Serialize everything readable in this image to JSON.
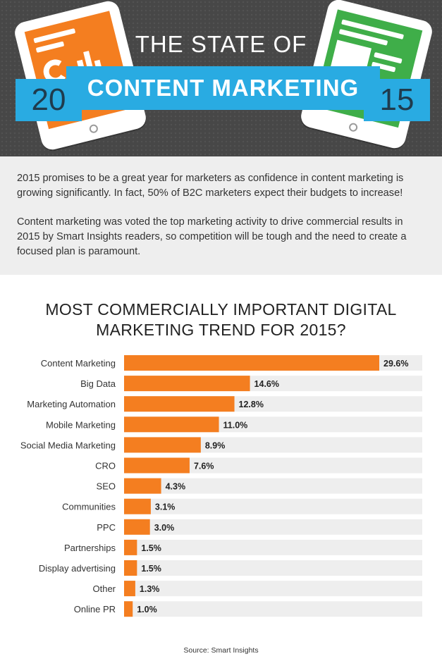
{
  "header": {
    "title_top": "THE STATE OF",
    "title_main": "CONTENT MARKETING",
    "year_left": "20",
    "year_right": "15"
  },
  "intro": {
    "paragraph_1": "2015 promises to be a great year for marketers as confidence in content marketing is growing significantly. In fact, 50% of B2C marketers expect their budgets to increase!",
    "paragraph_2": "Content marketing was voted the top marketing activity to drive commercial results in 2015 by Smart Insights readers, so competition will be tough and the need to create a focused plan is paramount."
  },
  "chart_data": {
    "type": "bar",
    "orientation": "horizontal",
    "title_line_1": "MOST COMMERCIALLY IMPORTANT DIGITAL",
    "title_line_2": "MARKETING TREND FOR 2015?",
    "categories": [
      "Content Marketing",
      "Big Data",
      "Marketing Automation",
      "Mobile Marketing",
      "Social Media Marketing",
      "CRO",
      "SEO",
      "Communities",
      "PPC",
      "Partnerships",
      "Display advertising",
      "Other",
      "Online PR"
    ],
    "values": [
      29.6,
      14.6,
      12.8,
      11.0,
      8.9,
      7.6,
      4.3,
      3.1,
      3.0,
      1.5,
      1.5,
      1.3,
      1.0
    ],
    "value_labels": [
      "29.6%",
      "14.6%",
      "12.8%",
      "11.0%",
      "8.9%",
      "7.6%",
      "4.3%",
      "3.1%",
      "3.0%",
      "1.5%",
      "1.5%",
      "1.3%",
      "1.0%"
    ],
    "xlim": [
      0,
      35
    ],
    "unit": "%",
    "bar_color": "#f47e20",
    "track_color": "#eeeeee",
    "grid": false,
    "legend": "none"
  },
  "source": "Source: Smart Insights",
  "colors": {
    "header_bg": "#474747",
    "banner": "#29abe2",
    "orange": "#f47e20",
    "green": "#3fae49",
    "intro_bg": "#eeeeee"
  }
}
